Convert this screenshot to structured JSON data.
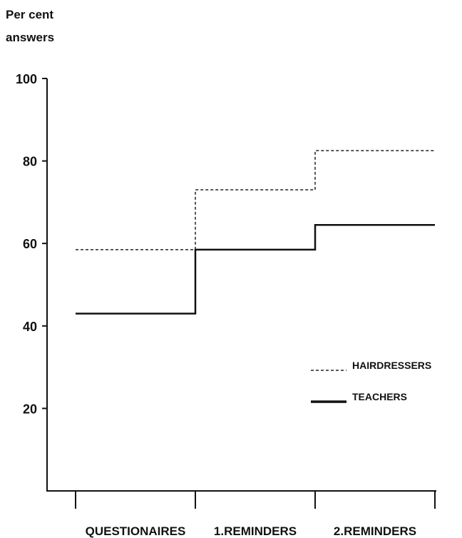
{
  "chart_data": {
    "type": "line",
    "style": "step",
    "title": "",
    "ylabel_lines": [
      "Per cent",
      "answers"
    ],
    "xlabel": "",
    "categories": [
      "QUESTIONAIRES",
      "1.REMINDERS",
      "2.REMINDERS"
    ],
    "ylim": [
      0,
      100
    ],
    "yticks": [
      20,
      40,
      60,
      80,
      100
    ],
    "grid": false,
    "legend_position": "bottom-right",
    "series": [
      {
        "name": "HAIRDRESSERS",
        "values": [
          58.5,
          73,
          82.5
        ],
        "line_style": "dashed",
        "color": "#222222"
      },
      {
        "name": "TEACHERS",
        "values": [
          43,
          58.5,
          64.5
        ],
        "line_style": "solid",
        "color": "#111111"
      }
    ]
  }
}
